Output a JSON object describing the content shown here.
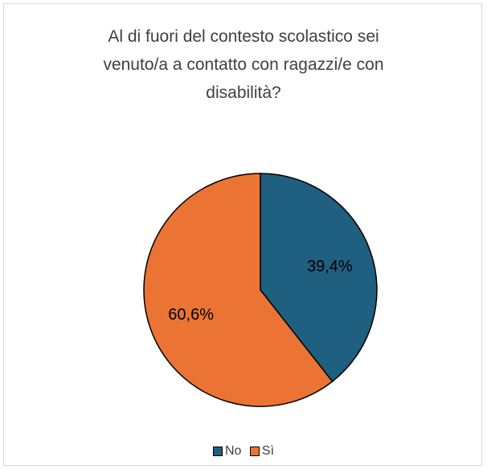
{
  "chart_data": {
    "type": "pie",
    "title_lines": [
      "Al di fuori del contesto scolastico sei",
      "venuto/a a contatto con ragazzi/e con",
      "disabilità?"
    ],
    "categories": [
      "No",
      "Sì"
    ],
    "values": [
      39.4,
      60.6
    ],
    "data_labels": [
      "39,4%",
      "60,6%"
    ],
    "colors": [
      "#1f5f80",
      "#eb7434"
    ],
    "legend_position": "bottom"
  }
}
